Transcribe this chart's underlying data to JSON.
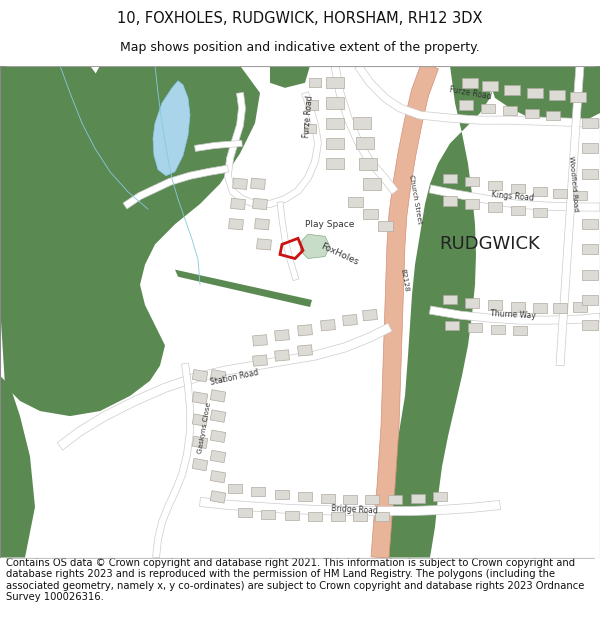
{
  "title_line1": "10, FOXHOLES, RUDGWICK, HORSHAM, RH12 3DX",
  "title_line2": "Map shows position and indicative extent of the property.",
  "footer_text": "Contains OS data © Crown copyright and database right 2021. This information is subject to Crown copyright and database rights 2023 and is reproduced with the permission of HM Land Registry. The polygons (including the associated geometry, namely x, y co-ordinates) are subject to Crown copyright and database rights 2023 Ordnance Survey 100026316.",
  "bg_color": "#ffffff",
  "map_bg": "#ffffff",
  "green_color": "#5a8a52",
  "road_orange": "#e8b49a",
  "road_white": "#ffffff",
  "road_outline": "#cccccc",
  "water_blue": "#aad4ea",
  "building_fill": "#dddbd6",
  "building_edge": "#b0aaa0",
  "plot_red": "#cc1111",
  "play_space_green": "#c8ddc8",
  "title_fontsize": 10.5,
  "subtitle_fontsize": 9,
  "footer_fontsize": 7.2,
  "label_rudgwick": "RUDGWICK",
  "label_play_space": "Play Space",
  "label_foxholes": "FoxHoles",
  "label_furze_road": "Furze Road",
  "label_kings_road": "Kings Road",
  "label_church_street": "Church Street",
  "label_b2128": "B2128",
  "label_station_road": "Station Road",
  "label_bridge_road": "Bridge Road",
  "label_thurne_way": "Thurne Way",
  "label_woodfield_road": "Woodfield Road",
  "label_gaskyns_close": "Gaskyns Close"
}
